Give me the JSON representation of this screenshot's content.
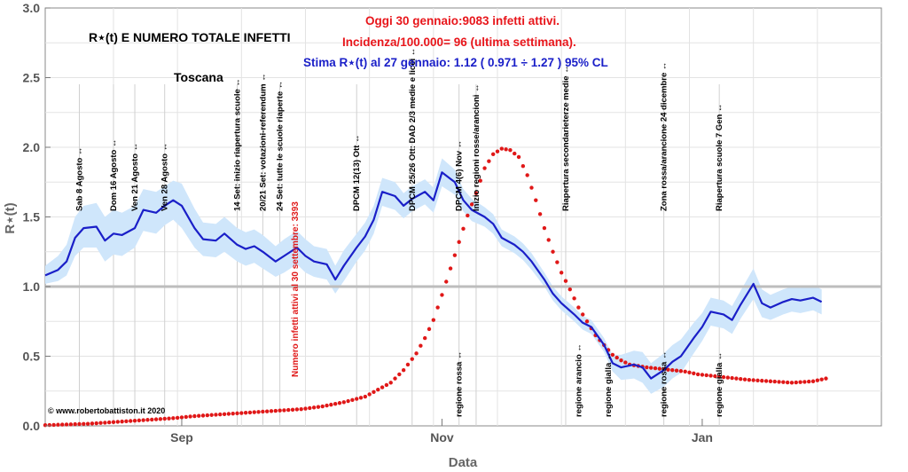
{
  "chart_data": {
    "type": "line",
    "title": "R⋆(t) E NUMERO TOTALE INFETTI",
    "subtitle": "Toscana",
    "headline": "Oggi 30 gennaio:9083 infetti attivi.",
    "incidence": "Incidenza/100.000= 96 (ultima settimana).",
    "estimate": "Stima R⋆(t) al 27 gennaio: 1.12 ( 0.971 ÷ 1.27 ) 95% CL",
    "xlabel": "Data",
    "ylabel": "R⋆(t)",
    "x_ticks": [
      "Sep",
      "Nov",
      "Jan"
    ],
    "x_tick_days": [
      32,
      93,
      154
    ],
    "y_ticks": [
      "0.0",
      "0.5",
      "1.0",
      "1.5",
      "2.0",
      "2.5",
      "3.0"
    ],
    "ylim": [
      0,
      3
    ],
    "xlim_days": [
      0,
      196
    ],
    "x_origin_date": "2020-08-01",
    "reference_line": 1.0,
    "credit": "© www.robertobattiston.it 2020",
    "peak_label": "Numero infetti attivi al 30 settembre: 3393",
    "series": [
      {
        "name": "R⋆(t)",
        "color": "#1a1fc8",
        "band_color": "#cfe6fb",
        "x": [
          0,
          3,
          5,
          7,
          9,
          12,
          14,
          16,
          18,
          21,
          23,
          26,
          28,
          30,
          32,
          35,
          37,
          40,
          42,
          45,
          47,
          49,
          51,
          54,
          56,
          59,
          61,
          63,
          66,
          68,
          70,
          73,
          75,
          77,
          79,
          82,
          84,
          86,
          89,
          91,
          93,
          96,
          98,
          100,
          103,
          105,
          107,
          110,
          112,
          114,
          117,
          119,
          121,
          124,
          126,
          128,
          131,
          133,
          135,
          138,
          140,
          142,
          145,
          147,
          149,
          152,
          154,
          156,
          159,
          161,
          163,
          166,
          168,
          170,
          173,
          175,
          177,
          180,
          182
        ],
        "y": [
          1.08,
          1.12,
          1.18,
          1.35,
          1.42,
          1.43,
          1.33,
          1.38,
          1.37,
          1.42,
          1.55,
          1.53,
          1.58,
          1.62,
          1.58,
          1.42,
          1.34,
          1.33,
          1.38,
          1.3,
          1.27,
          1.29,
          1.25,
          1.18,
          1.22,
          1.28,
          1.22,
          1.18,
          1.16,
          1.05,
          1.15,
          1.28,
          1.36,
          1.48,
          1.68,
          1.65,
          1.58,
          1.63,
          1.68,
          1.62,
          1.82,
          1.75,
          1.62,
          1.55,
          1.5,
          1.45,
          1.35,
          1.3,
          1.25,
          1.18,
          1.05,
          0.95,
          0.88,
          0.8,
          0.74,
          0.71,
          0.58,
          0.45,
          0.42,
          0.44,
          0.42,
          0.34,
          0.4,
          0.46,
          0.5,
          0.63,
          0.71,
          0.82,
          0.8,
          0.76,
          0.87,
          1.02,
          0.88,
          0.85,
          0.89,
          0.91,
          0.9,
          0.92,
          0.89
        ],
        "lower": [
          1.02,
          1.04,
          1.08,
          1.22,
          1.28,
          1.28,
          1.18,
          1.23,
          1.22,
          1.28,
          1.4,
          1.38,
          1.44,
          1.48,
          1.42,
          1.28,
          1.22,
          1.21,
          1.25,
          1.18,
          1.15,
          1.17,
          1.13,
          1.07,
          1.1,
          1.16,
          1.1,
          1.07,
          1.05,
          0.95,
          1.04,
          1.18,
          1.26,
          1.38,
          1.58,
          1.55,
          1.49,
          1.54,
          1.59,
          1.53,
          1.72,
          1.66,
          1.54,
          1.47,
          1.43,
          1.38,
          1.29,
          1.24,
          1.19,
          1.12,
          1.0,
          0.9,
          0.83,
          0.75,
          0.69,
          0.66,
          0.53,
          0.39,
          0.33,
          0.34,
          0.31,
          0.23,
          0.28,
          0.34,
          0.38,
          0.52,
          0.61,
          0.72,
          0.7,
          0.66,
          0.77,
          0.91,
          0.78,
          0.76,
          0.8,
          0.82,
          0.81,
          0.83,
          0.8
        ],
        "upper": [
          1.15,
          1.22,
          1.3,
          1.5,
          1.58,
          1.6,
          1.5,
          1.55,
          1.53,
          1.58,
          1.7,
          1.68,
          1.72,
          1.76,
          1.74,
          1.56,
          1.46,
          1.45,
          1.5,
          1.42,
          1.39,
          1.41,
          1.37,
          1.29,
          1.34,
          1.4,
          1.34,
          1.29,
          1.27,
          1.15,
          1.26,
          1.38,
          1.46,
          1.58,
          1.78,
          1.75,
          1.67,
          1.72,
          1.77,
          1.71,
          1.92,
          1.84,
          1.7,
          1.63,
          1.57,
          1.52,
          1.41,
          1.36,
          1.31,
          1.24,
          1.1,
          1.0,
          0.93,
          0.85,
          0.79,
          0.76,
          0.63,
          0.51,
          0.51,
          0.54,
          0.53,
          0.45,
          0.52,
          0.58,
          0.62,
          0.74,
          0.81,
          0.92,
          0.9,
          0.86,
          0.97,
          1.13,
          0.98,
          0.94,
          0.98,
          1.0,
          0.99,
          1.01,
          0.98
        ]
      },
      {
        "name": "Numero infetti attivi",
        "color": "#e01818",
        "x": [
          0,
          5,
          10,
          15,
          20,
          25,
          30,
          35,
          40,
          45,
          50,
          55,
          60,
          65,
          70,
          75,
          78,
          81,
          84,
          87,
          89,
          91,
          93,
          95,
          97,
          99,
          101,
          103,
          105,
          107,
          109,
          111,
          113,
          115,
          117,
          119,
          121,
          123,
          125,
          127,
          129,
          131,
          133,
          135,
          137,
          139,
          141,
          144,
          147,
          150,
          153,
          156,
          159,
          162,
          165,
          170,
          175,
          180,
          183
        ],
        "y": [
          0.005,
          0.01,
          0.015,
          0.025,
          0.035,
          0.045,
          0.055,
          0.07,
          0.08,
          0.09,
          0.1,
          0.11,
          0.12,
          0.14,
          0.17,
          0.21,
          0.26,
          0.31,
          0.4,
          0.52,
          0.63,
          0.76,
          0.94,
          1.13,
          1.32,
          1.51,
          1.67,
          1.85,
          1.95,
          1.99,
          1.98,
          1.93,
          1.8,
          1.62,
          1.42,
          1.25,
          1.1,
          0.98,
          0.85,
          0.75,
          0.65,
          0.58,
          0.51,
          0.47,
          0.44,
          0.43,
          0.42,
          0.41,
          0.4,
          0.39,
          0.37,
          0.36,
          0.35,
          0.34,
          0.33,
          0.32,
          0.31,
          0.32,
          0.34
        ]
      }
    ],
    "events": [
      {
        "day": 8,
        "label": "Sab 8 Agosto"
      },
      {
        "day": 16,
        "label": "Dom 16 Agosto"
      },
      {
        "day": 21,
        "label": "Ven 21 Agosto"
      },
      {
        "day": 28,
        "label": "Ven 28 Agosto"
      },
      {
        "day": 45,
        "label": "14 Set: inizio riapertura scuole"
      },
      {
        "day": 51,
        "label": "20/21 Set: votazioni-referendum"
      },
      {
        "day": 55,
        "label": "24 Set: tutte le scuole riaperte"
      },
      {
        "day": 73,
        "label": "DPCM 12(13) Ott"
      },
      {
        "day": 86,
        "label": "DPCM 25/26 Ott: DAD 2/3 medie e licei"
      },
      {
        "day": 97,
        "label": "DPCM 4(6) Nov"
      },
      {
        "day": 101,
        "label": "Inizio regioni rosse/arancioni"
      },
      {
        "day": 122,
        "label": "Riapertura secondarieterze medie"
      },
      {
        "day": 145,
        "label": "Zona rossa/arancione 24 dicembre"
      },
      {
        "day": 158,
        "label": "Riapertura scuole 7 Gen"
      }
    ],
    "lower_events": [
      {
        "day": 97,
        "label": "regione rossa"
      },
      {
        "day": 125,
        "label": "regione arancio"
      },
      {
        "day": 132,
        "label": "regione gialla"
      },
      {
        "day": 145,
        "label": "regione rossa"
      },
      {
        "day": 158,
        "label": "regione gialla"
      }
    ]
  }
}
